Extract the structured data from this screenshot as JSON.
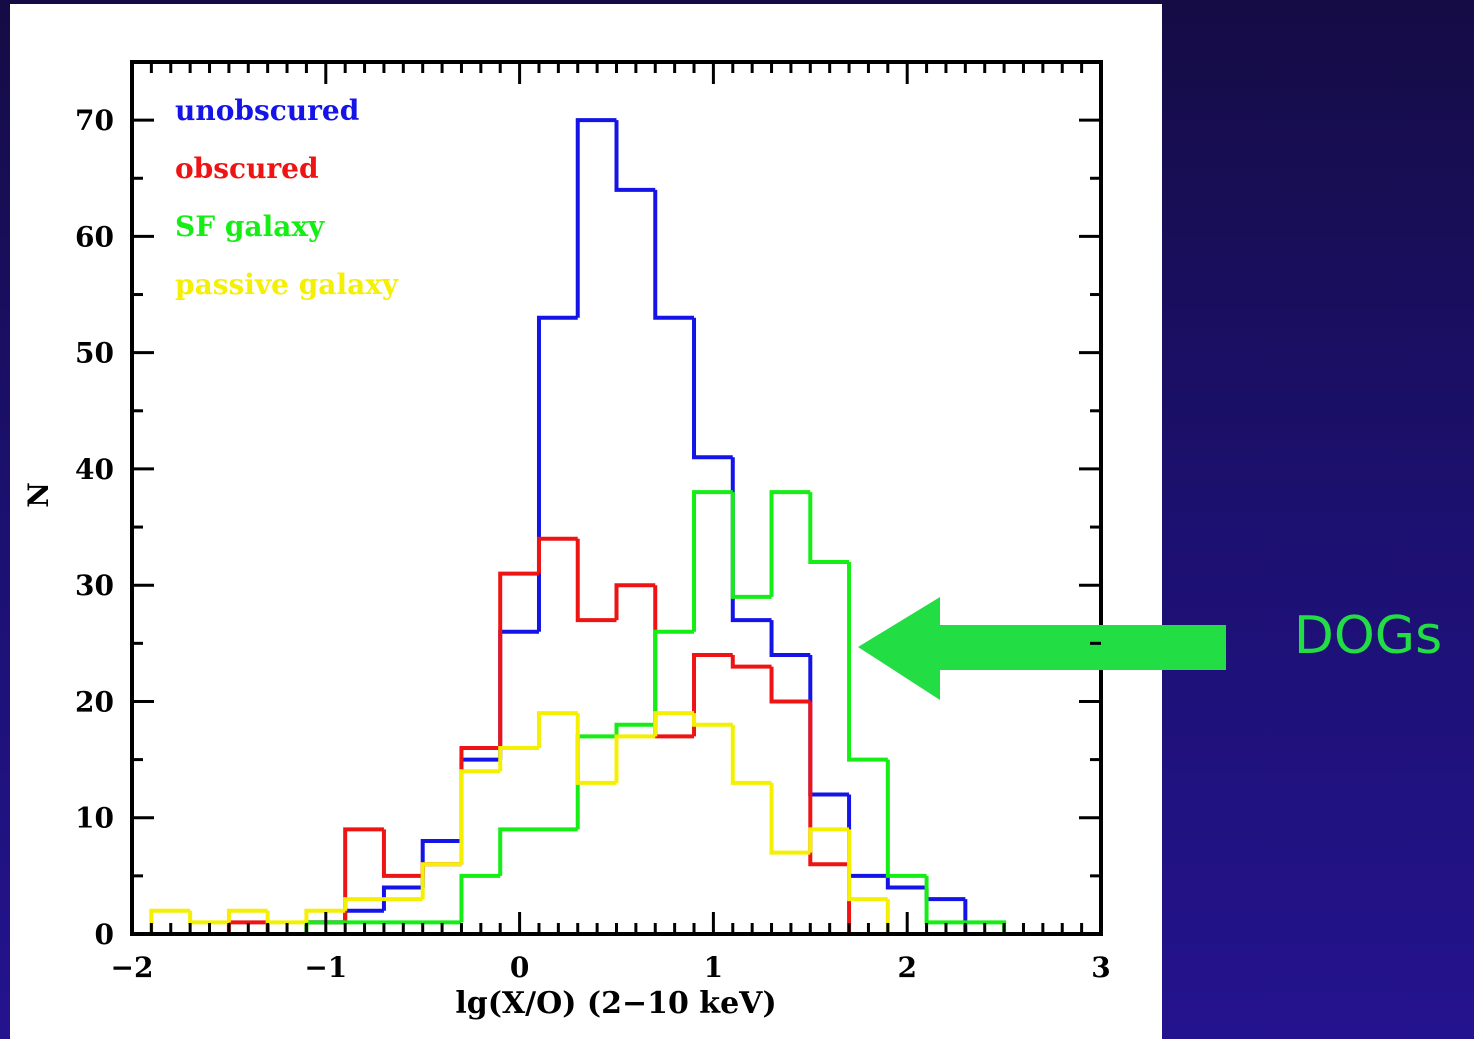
{
  "chart_data": {
    "type": "histogram",
    "xlabel": "lg(X/O) (2−10 keV)",
    "ylabel": "N",
    "annotation": "DOGs",
    "bins": [
      -1.9,
      -1.7,
      -1.5,
      -1.3,
      -1.1,
      -0.9,
      -0.7,
      -0.5,
      -0.3,
      -0.1,
      0.1,
      0.3,
      0.5,
      0.7,
      0.9,
      1.1,
      1.3,
      1.5,
      1.7,
      1.9,
      2.1,
      2.3,
      2.5
    ],
    "series": [
      {
        "name": "unobscured",
        "color": "#1414e6",
        "values": [
          0,
          0,
          0,
          0,
          1,
          2,
          4,
          8,
          15,
          26,
          53,
          70,
          64,
          53,
          41,
          27,
          24,
          12,
          5,
          4,
          3,
          0
        ]
      },
      {
        "name": "obscured",
        "color": "#ee1414",
        "values": [
          0,
          0,
          1,
          0,
          1,
          9,
          5,
          6,
          16,
          31,
          34,
          27,
          30,
          17,
          24,
          23,
          20,
          6,
          0,
          0,
          0,
          0
        ]
      },
      {
        "name": "SF galaxy",
        "color": "#14ee14",
        "values": [
          0,
          0,
          0,
          0,
          1,
          1,
          1,
          1,
          5,
          9,
          9,
          17,
          18,
          26,
          38,
          29,
          38,
          32,
          15,
          5,
          1,
          1
        ]
      },
      {
        "name": "passive galaxy",
        "color": "#f4f000",
        "values": [
          2,
          1,
          2,
          1,
          2,
          3,
          3,
          6,
          14,
          16,
          19,
          13,
          17,
          19,
          18,
          13,
          7,
          9,
          3,
          0,
          0,
          0
        ]
      }
    ],
    "xlim": [
      -2,
      3
    ],
    "ylim": [
      0,
      75
    ],
    "xticks": [
      {
        "value": -2,
        "label": "−2"
      },
      {
        "value": -1,
        "label": "−1"
      },
      0,
      1,
      2,
      3
    ],
    "yticks": [
      0,
      10,
      20,
      30,
      40,
      50,
      60,
      70
    ],
    "legend": "upper left"
  }
}
